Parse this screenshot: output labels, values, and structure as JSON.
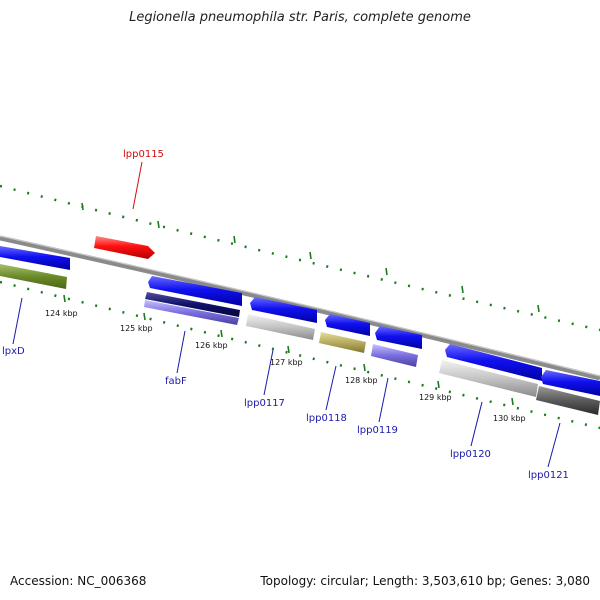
{
  "title": "Legionella pneumophila str. Paris, complete genome",
  "footer": {
    "accession": "Accession: NC_006368",
    "summary": "Topology: circular; Length: 3,503,610 bp; Genes: 3,080"
  },
  "colors": {
    "backbone": "#8a8a8a",
    "ticks": "#1f7a1f",
    "forward_gene": "#0a0af0",
    "highlight_gene": "#ff1a1a",
    "label_blue": "#1a1aaa",
    "label_red": "#cc1111"
  },
  "ticks": [
    "124 kbp",
    "125 kbp",
    "126 kbp",
    "127 kbp",
    "128 kbp",
    "129 kbp",
    "130 kbp"
  ],
  "gene_labels": [
    {
      "id": "lpxD",
      "text": "lpxD",
      "color": "#1a1aaa"
    },
    {
      "id": "lpp0115",
      "text": "lpp0115",
      "color": "#cc1111"
    },
    {
      "id": "fabF",
      "text": "fabF",
      "color": "#1a1aaa"
    },
    {
      "id": "lpp0117",
      "text": "lpp0117",
      "color": "#1a1aaa"
    },
    {
      "id": "lpp0118",
      "text": "lpp0118",
      "color": "#1a1aaa"
    },
    {
      "id": "lpp0119",
      "text": "lpp0119",
      "color": "#1a1aaa"
    },
    {
      "id": "lpp0120",
      "text": "lpp0120",
      "color": "#1a1aaa"
    },
    {
      "id": "lpp0121",
      "text": "lpp0121",
      "color": "#1a1aaa"
    }
  ]
}
